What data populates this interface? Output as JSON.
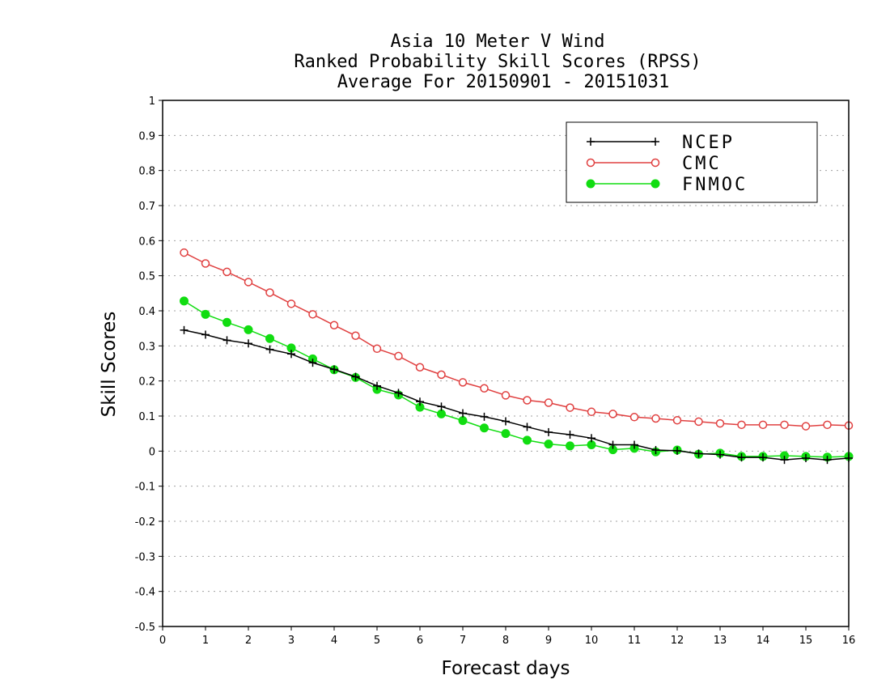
{
  "chart_data": {
    "type": "line",
    "title": [
      "Asia 10 Meter V Wind",
      "Ranked Probability Skill Scores (RPSS)",
      "Average For 20150901 - 20151031"
    ],
    "xlabel": "Forecast days",
    "ylabel": "Skill Scores",
    "xlim": [
      0,
      16
    ],
    "ylim": [
      -0.5,
      1
    ],
    "xticks": [
      0,
      1,
      2,
      3,
      4,
      5,
      6,
      7,
      8,
      9,
      10,
      11,
      12,
      13,
      14,
      15,
      16
    ],
    "yticks": [
      -0.5,
      -0.4,
      -0.3,
      -0.2,
      -0.1,
      0,
      0.1,
      0.2,
      0.3,
      0.4,
      0.5,
      0.6,
      0.7,
      0.8,
      0.9,
      1
    ],
    "ytick_labels": [
      "-0.5",
      "-0.4",
      "-0.3",
      "-0.2",
      "-0.1",
      "0",
      "0.1",
      "0.2",
      "0.3",
      "0.4",
      "0.5",
      "0.6",
      "0.7",
      "0.8",
      "0.9",
      "1"
    ],
    "grid": "horizontal-dotted",
    "legend_position": "top-right",
    "x": [
      0.5,
      1,
      1.5,
      2,
      2.5,
      3,
      3.5,
      4,
      4.5,
      5,
      5.5,
      6,
      6.5,
      7,
      7.5,
      8,
      8.5,
      9,
      9.5,
      10,
      10.5,
      11,
      11.5,
      12,
      12.5,
      13,
      13.5,
      14,
      14.5,
      15,
      15.5,
      16
    ],
    "series": [
      {
        "name": "NCEP",
        "color": "#000000",
        "marker": "plus",
        "values": [
          0.345,
          0.332,
          0.316,
          0.307,
          0.29,
          0.277,
          0.252,
          0.233,
          0.212,
          0.186,
          0.166,
          0.141,
          0.127,
          0.108,
          0.098,
          0.085,
          0.069,
          0.054,
          0.047,
          0.037,
          0.018,
          0.018,
          0.003,
          0.001,
          -0.007,
          -0.01,
          -0.018,
          -0.018,
          -0.025,
          -0.02,
          -0.025,
          -0.02
        ]
      },
      {
        "name": "CMC",
        "color": "#e04040",
        "marker": "open-circle",
        "values": [
          0.566,
          0.535,
          0.511,
          0.482,
          0.452,
          0.42,
          0.39,
          0.359,
          0.329,
          0.292,
          0.271,
          0.239,
          0.218,
          0.196,
          0.179,
          0.159,
          0.145,
          0.138,
          0.124,
          0.112,
          0.106,
          0.097,
          0.093,
          0.088,
          0.084,
          0.079,
          0.075,
          0.075,
          0.075,
          0.071,
          0.075,
          0.073
        ]
      },
      {
        "name": "FNMOC",
        "color": "#11dd11",
        "marker": "filled-circle",
        "values": [
          0.428,
          0.39,
          0.367,
          0.346,
          0.321,
          0.294,
          0.263,
          0.232,
          0.21,
          0.176,
          0.16,
          0.125,
          0.106,
          0.087,
          0.066,
          0.05,
          0.031,
          0.02,
          0.015,
          0.018,
          0.004,
          0.008,
          -0.002,
          0.003,
          -0.009,
          -0.006,
          -0.015,
          -0.015,
          -0.013,
          -0.015,
          -0.017,
          -0.015
        ]
      }
    ]
  }
}
